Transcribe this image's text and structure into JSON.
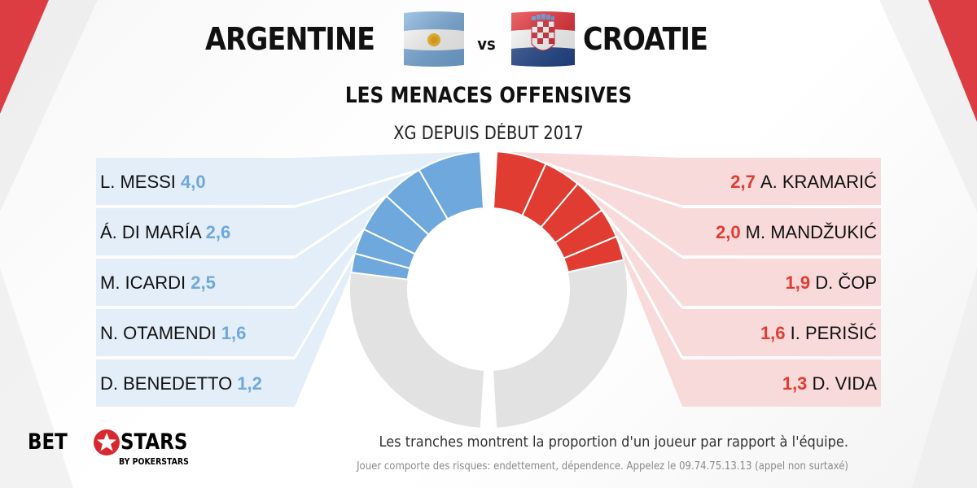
{
  "header": {
    "team_left": "ARGENTINE",
    "vs": "vs",
    "team_right": "CROATIE",
    "subtitle": "LES MENACES OFFENSIVES",
    "metric": "XG DEPUIS DÉBUT 2017"
  },
  "colors": {
    "argentina": "#6fa8dc",
    "argentina_panel": "#e3eef8",
    "croatia": "#e03c31",
    "croatia_panel": "#f9dada",
    "remainder": "#e2e2e2",
    "accent_red": "#d7282f"
  },
  "chart_data": [
    {
      "type": "pie",
      "team": "ARGENTINE",
      "series": [
        {
          "name": "L. MESSI",
          "value": 4.0,
          "label": "4,0"
        },
        {
          "name": "Á. DI MARÍA",
          "value": 2.6,
          "label": "2,6"
        },
        {
          "name": "M. ICARDI",
          "value": 2.5,
          "label": "2,5"
        },
        {
          "name": "N. OTAMENDI",
          "value": 1.6,
          "label": "1,6"
        },
        {
          "name": "D. BENEDETTO",
          "value": 1.2,
          "label": "1,2"
        }
      ],
      "rest_share": 0.55,
      "side": "left"
    },
    {
      "type": "pie",
      "team": "CROATIE",
      "series": [
        {
          "name": "A. KRAMARIĆ",
          "value": 2.7,
          "label": "2,7"
        },
        {
          "name": "M. MANDŽUKIĆ",
          "value": 2.0,
          "label": "2,0"
        },
        {
          "name": "D. ČOP",
          "value": 1.9,
          "label": "1,9"
        },
        {
          "name": "I. PERIŠIĆ",
          "value": 1.6,
          "label": "1,6"
        },
        {
          "name": "D. VIDA",
          "value": 1.3,
          "label": "1,3"
        }
      ],
      "rest_share": 0.58,
      "side": "right"
    }
  ],
  "footer": {
    "note": "Les tranches montrent la proportion d'un joueur par rapport à l'équipe.",
    "disclaimer": "Jouer comporte des risques: endettement, dépendence. Appelez le 09.74.75.13.13 (appel non surtaxé)"
  },
  "logo": {
    "part1": "BET",
    "part2": "STARS",
    "sub": "BY POKERSTARS"
  }
}
